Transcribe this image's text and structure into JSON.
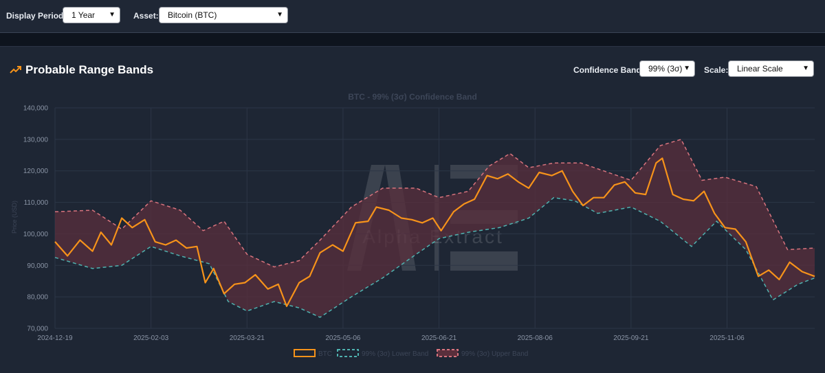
{
  "controls": {
    "display_period_label": "Display Period:",
    "display_period_value": "1 Year",
    "asset_label": "Asset:",
    "asset_value": "Bitcoin (BTC)",
    "confidence_label": "Confidence Band:",
    "confidence_value": "99% (3σ)",
    "scale_label": "Scale:",
    "scale_value": "Linear Scale"
  },
  "panel": {
    "title": "Probable Range Bands"
  },
  "watermark": {
    "text": "Alpha Extract"
  },
  "icons": {
    "trend": "trending-up-icon",
    "chevron": "chevron-down-icon"
  },
  "colors": {
    "btc": "#f7931a",
    "lower": "#4fb3b0",
    "upper": "#d9747e",
    "band_fill": "#5a2f3c",
    "bg": "#1e2634"
  },
  "chart_data": {
    "type": "line",
    "title": "BTC - 99% (3σ) Confidence Band",
    "ylabel": "Price (USD)",
    "ylim": [
      70000,
      140000
    ],
    "yticks": [
      "70,000",
      "80,000",
      "90,000",
      "100,000",
      "110,000",
      "120,000",
      "130,000",
      "140,000"
    ],
    "xticks": [
      "2024-12-19",
      "2025-02-03",
      "2025-03-21",
      "2025-05-06",
      "2025-06-21",
      "2025-08-06",
      "2025-09-21",
      "2025-11-06"
    ],
    "x_start": "2024-12-19",
    "x_end": "2025-12-18",
    "grid": true,
    "legend_position": "bottom",
    "series": [
      {
        "name": "BTC",
        "dates": [
          "2024-12-19",
          "2024-12-25",
          "2024-12-31",
          "2025-01-06",
          "2025-01-10",
          "2025-01-15",
          "2025-01-20",
          "2025-01-25",
          "2025-01-31",
          "2025-02-05",
          "2025-02-10",
          "2025-02-15",
          "2025-02-20",
          "2025-02-25",
          "2025-03-01",
          "2025-03-05",
          "2025-03-10",
          "2025-03-15",
          "2025-03-20",
          "2025-03-25",
          "2025-03-31",
          "2025-04-05",
          "2025-04-09",
          "2025-04-15",
          "2025-04-20",
          "2025-04-25",
          "2025-05-01",
          "2025-05-06",
          "2025-05-12",
          "2025-05-18",
          "2025-05-22",
          "2025-05-28",
          "2025-06-03",
          "2025-06-08",
          "2025-06-13",
          "2025-06-18",
          "2025-06-22",
          "2025-06-28",
          "2025-07-03",
          "2025-07-08",
          "2025-07-14",
          "2025-07-19",
          "2025-07-24",
          "2025-07-29",
          "2025-08-03",
          "2025-08-08",
          "2025-08-14",
          "2025-08-19",
          "2025-08-24",
          "2025-08-29",
          "2025-09-03",
          "2025-09-08",
          "2025-09-13",
          "2025-09-18",
          "2025-09-23",
          "2025-09-28",
          "2025-10-03",
          "2025-10-06",
          "2025-10-11",
          "2025-10-16",
          "2025-10-21",
          "2025-10-26",
          "2025-10-31",
          "2025-11-05",
          "2025-11-10",
          "2025-11-15",
          "2025-11-21",
          "2025-11-26",
          "2025-12-01",
          "2025-12-06",
          "2025-12-12",
          "2025-12-18"
        ],
        "values": [
          97500,
          93000,
          98000,
          94500,
          100500,
          96500,
          105000,
          102000,
          104500,
          97500,
          96500,
          98000,
          95500,
          96000,
          84500,
          89000,
          81000,
          84000,
          84500,
          87000,
          82500,
          84000,
          77000,
          84500,
          86500,
          94000,
          96500,
          94500,
          103500,
          104000,
          108500,
          107500,
          105000,
          104500,
          103500,
          105000,
          101000,
          107000,
          109500,
          111000,
          118500,
          117500,
          119000,
          116500,
          114500,
          119500,
          118500,
          120000,
          113500,
          109000,
          111500,
          111500,
          115500,
          116500,
          113000,
          112500,
          122500,
          124000,
          112500,
          111000,
          110500,
          113500,
          106500,
          102000,
          101500,
          97500,
          86500,
          88500,
          85500,
          91000,
          88000,
          86500
        ]
      },
      {
        "name": "99% (3σ) Lower Band",
        "dates": [
          "2024-12-19",
          "2025-01-06",
          "2025-01-20",
          "2025-02-03",
          "2025-02-17",
          "2025-03-03",
          "2025-03-12",
          "2025-03-21",
          "2025-04-03",
          "2025-04-15",
          "2025-04-25",
          "2025-05-10",
          "2025-05-25",
          "2025-06-10",
          "2025-06-21",
          "2025-07-05",
          "2025-07-20",
          "2025-08-03",
          "2025-08-15",
          "2025-08-25",
          "2025-09-05",
          "2025-09-21",
          "2025-10-05",
          "2025-10-20",
          "2025-11-01",
          "2025-11-15",
          "2025-11-28",
          "2025-12-10",
          "2025-12-18"
        ],
        "values": [
          92500,
          89000,
          90000,
          96000,
          93000,
          90500,
          78500,
          75500,
          78500,
          76500,
          73500,
          80000,
          86000,
          93500,
          98500,
          100500,
          102000,
          105000,
          111500,
          110500,
          106500,
          108500,
          104000,
          96000,
          104000,
          95000,
          79000,
          84000,
          86000
        ]
      },
      {
        "name": "99% (3σ) Upper Band",
        "dates": [
          "2024-12-19",
          "2025-01-06",
          "2025-01-20",
          "2025-02-03",
          "2025-02-17",
          "2025-02-28",
          "2025-03-10",
          "2025-03-21",
          "2025-04-03",
          "2025-04-15",
          "2025-04-25",
          "2025-05-10",
          "2025-05-25",
          "2025-06-10",
          "2025-06-21",
          "2025-07-05",
          "2025-07-15",
          "2025-07-25",
          "2025-08-03",
          "2025-08-15",
          "2025-08-28",
          "2025-09-10",
          "2025-09-21",
          "2025-10-05",
          "2025-10-15",
          "2025-10-25",
          "2025-11-05",
          "2025-11-20",
          "2025-12-05",
          "2025-12-18"
        ],
        "values": [
          107000,
          107500,
          101500,
          110500,
          107500,
          101000,
          104000,
          93500,
          89500,
          91500,
          98000,
          108500,
          114500,
          114500,
          111500,
          113500,
          121500,
          125500,
          121000,
          122500,
          122500,
          119500,
          117000,
          128000,
          130000,
          117000,
          118000,
          115000,
          95000,
          95500
        ]
      }
    ]
  }
}
